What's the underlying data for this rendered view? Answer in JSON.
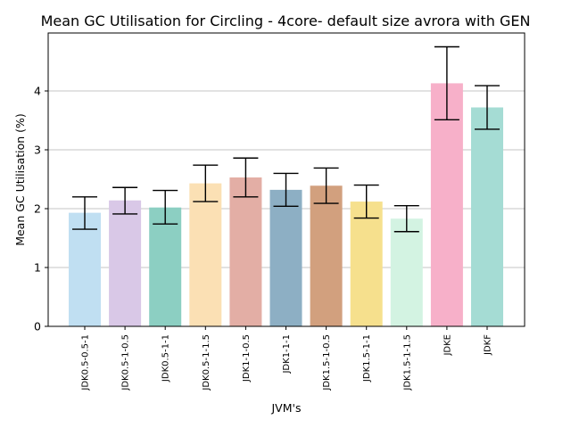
{
  "chart_data": {
    "type": "bar",
    "title": "Mean GC Utilisation for Circling - 4core- default size avrora with GEN",
    "xlabel": "JVM's",
    "ylabel": "Mean GC Utilisation (%)",
    "ylim": [
      0,
      5
    ],
    "yticks": [
      0,
      1,
      2,
      3,
      4
    ],
    "grid": "y",
    "categories": [
      "JDK0.5-0.5-1",
      "JDK0.5-1-0.5",
      "JDK0.5-1-1",
      "JDK0.5-1-1.5",
      "JDK1-1-0.5",
      "JDK1-1-1",
      "JDK1.5-1-0.5",
      "JDK1.5-1-1",
      "JDK1.5-1-1.5",
      "JDKE",
      "JDKF"
    ],
    "values": [
      1.93,
      2.14,
      2.02,
      2.43,
      2.53,
      2.32,
      2.39,
      2.12,
      1.83,
      4.13,
      3.72
    ],
    "error_low": [
      1.65,
      1.91,
      1.74,
      2.12,
      2.2,
      2.04,
      2.09,
      1.84,
      1.61,
      3.51,
      3.35
    ],
    "error_high": [
      2.2,
      2.36,
      2.31,
      2.74,
      2.86,
      2.6,
      2.69,
      2.4,
      2.05,
      4.75,
      4.09
    ],
    "colors": [
      "#c0dff2",
      "#d9c8e7",
      "#8ccfc2",
      "#fbe0b4",
      "#e3aea5",
      "#8dafc4",
      "#d2a07e",
      "#f6e08d",
      "#d3f3e2",
      "#f7b0c9",
      "#a5dcd4"
    ]
  }
}
